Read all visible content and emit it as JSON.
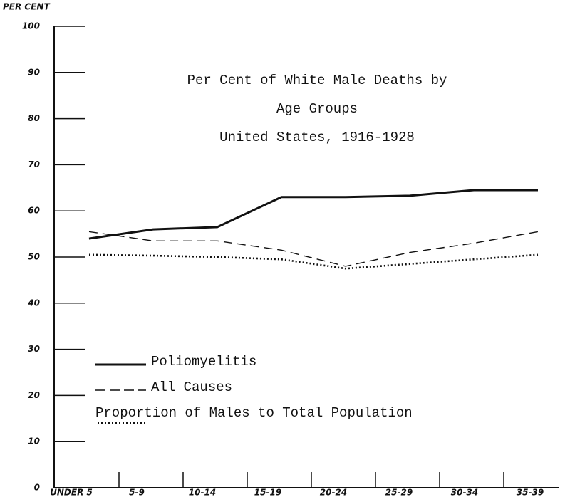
{
  "chart_data": {
    "type": "line",
    "title": [
      "Per Cent of White Male Deaths by",
      "Age Groups",
      "United States, 1916-1928"
    ],
    "y_axis_label": "PER CENT",
    "categories": [
      "UNDER 5",
      "5-9",
      "10-14",
      "15-19",
      "20-24",
      "25-29",
      "30-34",
      "35-39"
    ],
    "series": [
      {
        "name": "Poliomyelitis",
        "color": "#111111",
        "style": "solid",
        "values": [
          54,
          56,
          56.5,
          63,
          63,
          63.3,
          64.5,
          64.5
        ]
      },
      {
        "name": "All Causes",
        "color": "#111111",
        "style": "dashed",
        "values": [
          55.5,
          53.5,
          53.5,
          51.5,
          48,
          51,
          53,
          55.5
        ]
      },
      {
        "name": "Proportion of Males to Total Population",
        "color": "#111111",
        "style": "dotted",
        "values": [
          50.5,
          50.3,
          50,
          49.5,
          47.5,
          48.5,
          49.5,
          50.5
        ]
      }
    ],
    "ylim": [
      0,
      100
    ],
    "yticks": [
      0,
      10,
      20,
      30,
      40,
      50,
      60,
      70,
      80,
      90,
      100
    ],
    "legend": "lower left"
  }
}
